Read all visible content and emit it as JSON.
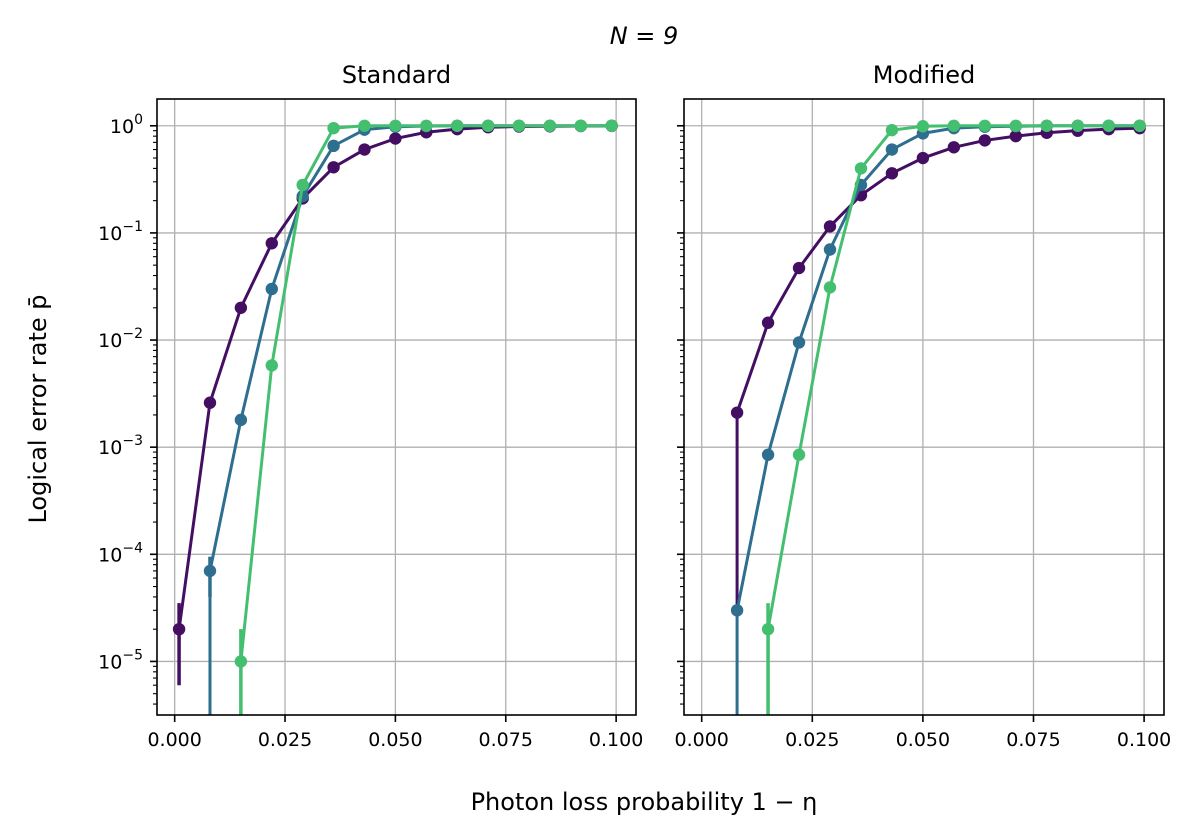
{
  "figure": {
    "suptitle": "N = 9",
    "xlabel": "Photon loss probability 1 − η",
    "ylabel": "Logical error rate p̄"
  },
  "chart_data": [
    {
      "type": "line",
      "title": "Standard",
      "xlim": [
        -0.004,
        0.1045
      ],
      "ylim_log10": [
        -5.5,
        0.25
      ],
      "yscale": "log",
      "grid": true,
      "xticks": [
        0.0,
        0.025,
        0.05,
        0.075,
        0.1
      ],
      "xtick_labels": [
        "0.000",
        "0.025",
        "0.050",
        "0.075",
        "0.100"
      ],
      "yticks_exp": [
        0,
        -1,
        -2,
        -3,
        -4,
        -5
      ],
      "ytick_base": "10",
      "ytick_exps": [
        "0",
        "−1",
        "−2",
        "−3",
        "−4",
        "−5"
      ],
      "series": [
        {
          "color": "#440f62",
          "x": [
            0.001,
            0.008,
            0.015,
            0.022,
            0.029,
            0.036,
            0.043,
            0.05,
            0.057,
            0.064,
            0.071,
            0.078,
            0.085,
            0.092,
            0.099
          ],
          "y": [
            2e-05,
            0.0026,
            0.02,
            0.08,
            0.21,
            0.41,
            0.6,
            0.76,
            0.87,
            0.93,
            0.97,
            0.985,
            0.99,
            0.995,
            0.998
          ],
          "err_lo": [
            6e-06,
            null,
            null,
            null,
            null,
            null,
            null,
            null,
            null,
            null,
            null,
            null,
            null,
            null,
            null
          ],
          "err_hi": [
            3.5e-05,
            null,
            null,
            null,
            null,
            null,
            null,
            null,
            null,
            null,
            null,
            null,
            null,
            null,
            null
          ]
        },
        {
          "color": "#2e6e8e",
          "x": [
            0.008,
            0.008,
            0.015,
            0.022,
            0.029,
            0.036,
            0.043,
            0.05,
            0.057,
            0.064,
            0.071,
            0.078,
            0.085,
            0.092,
            0.099
          ],
          "y": [
            1e-06,
            7e-05,
            0.0018,
            0.03,
            0.22,
            0.65,
            0.92,
            0.98,
            0.995,
            1.0,
            1.0,
            1.0,
            1.0,
            1.0,
            1.0
          ],
          "markers": [
            false,
            true,
            true,
            true,
            true,
            true,
            true,
            true,
            true,
            true,
            true,
            true,
            true,
            true,
            true
          ],
          "err_lo": [
            null,
            4e-05,
            null,
            null,
            null,
            null,
            null,
            null,
            null,
            null,
            null,
            null,
            null,
            null,
            null
          ],
          "err_hi": [
            null,
            9.5e-05,
            null,
            null,
            null,
            null,
            null,
            null,
            null,
            null,
            null,
            null,
            null,
            null,
            null
          ]
        },
        {
          "color": "#44bf70",
          "x": [
            0.015,
            0.015,
            0.022,
            0.029,
            0.036,
            0.043,
            0.05,
            0.057,
            0.064,
            0.071,
            0.078,
            0.085,
            0.092,
            0.099
          ],
          "y": [
            1e-06,
            1e-05,
            0.0058,
            0.28,
            0.95,
            1.0,
            1.0,
            1.0,
            1.0,
            1.0,
            1.0,
            1.0,
            1.0,
            1.0
          ],
          "markers": [
            false,
            true,
            true,
            true,
            true,
            true,
            true,
            true,
            true,
            true,
            true,
            true,
            true,
            true
          ],
          "err_lo": [
            null,
            3e-06,
            null,
            null,
            null,
            null,
            null,
            null,
            null,
            null,
            null,
            null,
            null,
            null
          ],
          "err_hi": [
            null,
            2e-05,
            null,
            null,
            null,
            null,
            null,
            null,
            null,
            null,
            null,
            null,
            null,
            null
          ]
        }
      ]
    },
    {
      "type": "line",
      "title": "Modified",
      "xlim": [
        -0.004,
        0.1045
      ],
      "ylim_log10": [
        -5.5,
        0.25
      ],
      "yscale": "log",
      "grid": true,
      "xticks": [
        0.0,
        0.025,
        0.05,
        0.075,
        0.1
      ],
      "xtick_labels": [
        "0.000",
        "0.025",
        "0.050",
        "0.075",
        "0.100"
      ],
      "yticks_exp": [
        0,
        -1,
        -2,
        -3,
        -4,
        -5
      ],
      "series": [
        {
          "color": "#440f62",
          "x": [
            0.008,
            0.008,
            0.015,
            0.022,
            0.029,
            0.036,
            0.043,
            0.05,
            0.057,
            0.064,
            0.071,
            0.078,
            0.085,
            0.092,
            0.099
          ],
          "y": [
            3e-05,
            0.0021,
            0.0145,
            0.047,
            0.115,
            0.225,
            0.36,
            0.5,
            0.63,
            0.73,
            0.8,
            0.86,
            0.9,
            0.93,
            0.95
          ],
          "markers": [
            false,
            true,
            true,
            true,
            true,
            true,
            true,
            true,
            true,
            true,
            true,
            true,
            true,
            true,
            true
          ]
        },
        {
          "color": "#2e6e8e",
          "x": [
            0.008,
            0.008,
            0.015,
            0.022,
            0.029,
            0.036,
            0.043,
            0.05,
            0.057,
            0.064,
            0.071,
            0.078,
            0.085,
            0.092,
            0.099
          ],
          "y": [
            1e-06,
            3e-05,
            0.00085,
            0.0095,
            0.07,
            0.28,
            0.6,
            0.85,
            0.95,
            0.98,
            0.99,
            1.0,
            1.0,
            1.0,
            1.0
          ],
          "markers": [
            false,
            true,
            true,
            true,
            true,
            true,
            true,
            true,
            true,
            true,
            true,
            true,
            true,
            true,
            true
          ]
        },
        {
          "color": "#44bf70",
          "x": [
            0.015,
            0.015,
            0.022,
            0.029,
            0.036,
            0.043,
            0.05,
            0.057,
            0.064,
            0.071,
            0.078,
            0.085,
            0.092,
            0.099
          ],
          "y": [
            1e-06,
            2e-05,
            0.00085,
            0.031,
            0.4,
            0.91,
            0.99,
            1.0,
            1.0,
            1.0,
            1.0,
            1.0,
            1.0,
            1.0
          ],
          "markers": [
            false,
            true,
            true,
            true,
            true,
            true,
            true,
            true,
            true,
            true,
            true,
            true,
            true,
            true
          ],
          "err_lo": [
            null,
            1e-06,
            null,
            null,
            null,
            null,
            null,
            null,
            null,
            null,
            null,
            null,
            null,
            null
          ],
          "err_hi": [
            null,
            3.5e-05,
            null,
            null,
            null,
            null,
            null,
            null,
            null,
            null,
            null,
            null,
            null,
            null
          ]
        }
      ]
    }
  ]
}
